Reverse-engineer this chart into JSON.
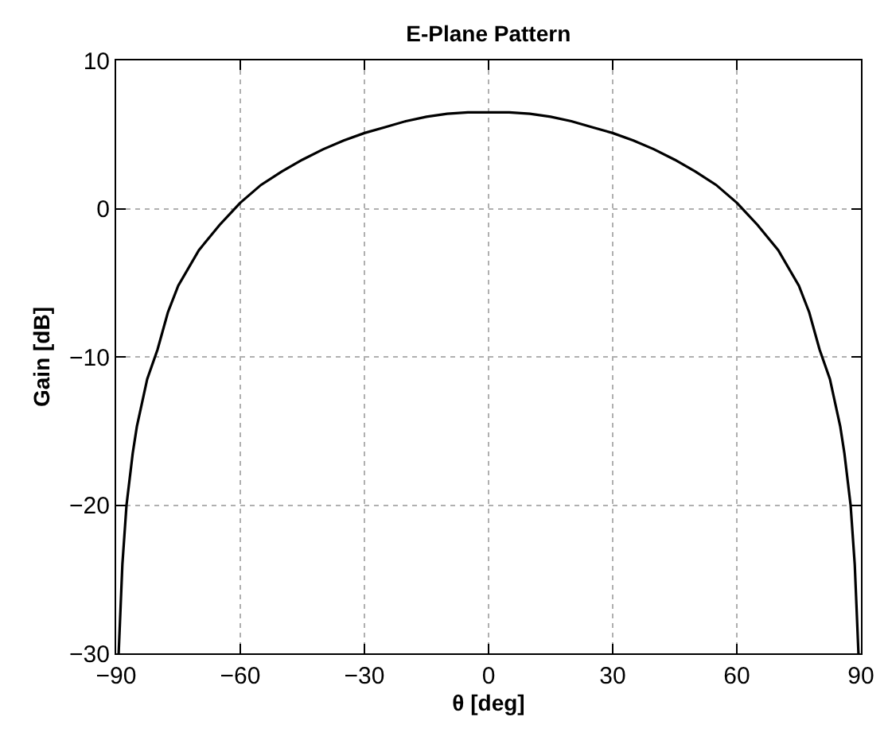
{
  "chart_data": {
    "type": "line",
    "title": "E-Plane Pattern",
    "xlabel": "θ [deg]",
    "ylabel": "Gain [dB]",
    "x": [
      -89.4,
      -88.5,
      -87.5,
      -86,
      -85,
      -82.5,
      -80,
      -77.5,
      -75,
      -70,
      -65,
      -60,
      -55,
      -50,
      -45,
      -40,
      -35,
      -30,
      -25,
      -20,
      -15,
      -10,
      -5,
      0,
      5,
      10,
      15,
      20,
      25,
      30,
      35,
      40,
      45,
      50,
      55,
      60,
      65,
      70,
      75,
      77.5,
      80,
      82.5,
      85,
      86,
      87.5,
      88.5,
      89.4
    ],
    "series": [
      {
        "color": "#000000",
        "values": [
          -30,
          -24,
          -20,
          -16.5,
          -14.7,
          -11.5,
          -9.5,
          -7,
          -5.2,
          -2.8,
          -1.1,
          0.4,
          1.6,
          2.5,
          3.3,
          4.0,
          4.6,
          5.1,
          5.5,
          5.9,
          6.2,
          6.4,
          6.5,
          6.5,
          6.5,
          6.4,
          6.2,
          5.9,
          5.5,
          5.1,
          4.6,
          4.0,
          3.3,
          2.5,
          1.6,
          0.4,
          -1.1,
          -2.8,
          -5.2,
          -7,
          -9.5,
          -11.5,
          -14.7,
          -16.5,
          -20,
          -24,
          -30
        ]
      }
    ],
    "xlim": [
      -90,
      90
    ],
    "xticks": [
      -90,
      -60,
      -30,
      0,
      30,
      60,
      90
    ],
    "ylim": [
      -30,
      10
    ],
    "yticks": [
      -30,
      -20,
      -10,
      0,
      10
    ],
    "grid": true,
    "marker": "none",
    "line_style": "solid"
  }
}
